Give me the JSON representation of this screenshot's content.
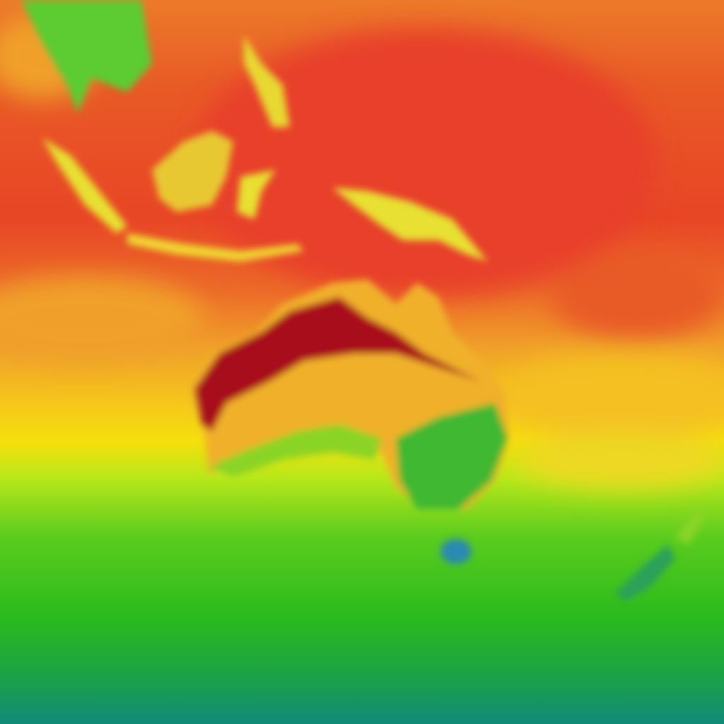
{
  "map": {
    "type": "temperature-heatmap-tile",
    "palette": {
      "very_hot": "#a8101e",
      "hot": "#e84526",
      "warm": "#ec7a2a",
      "mild_warm": "#f0a82a",
      "mild": "#f5d80c",
      "cool": "#b8e81a",
      "cold": "#2cbb1c",
      "very_cold": "#128a78",
      "highland": "#2a8ab0"
    }
  }
}
